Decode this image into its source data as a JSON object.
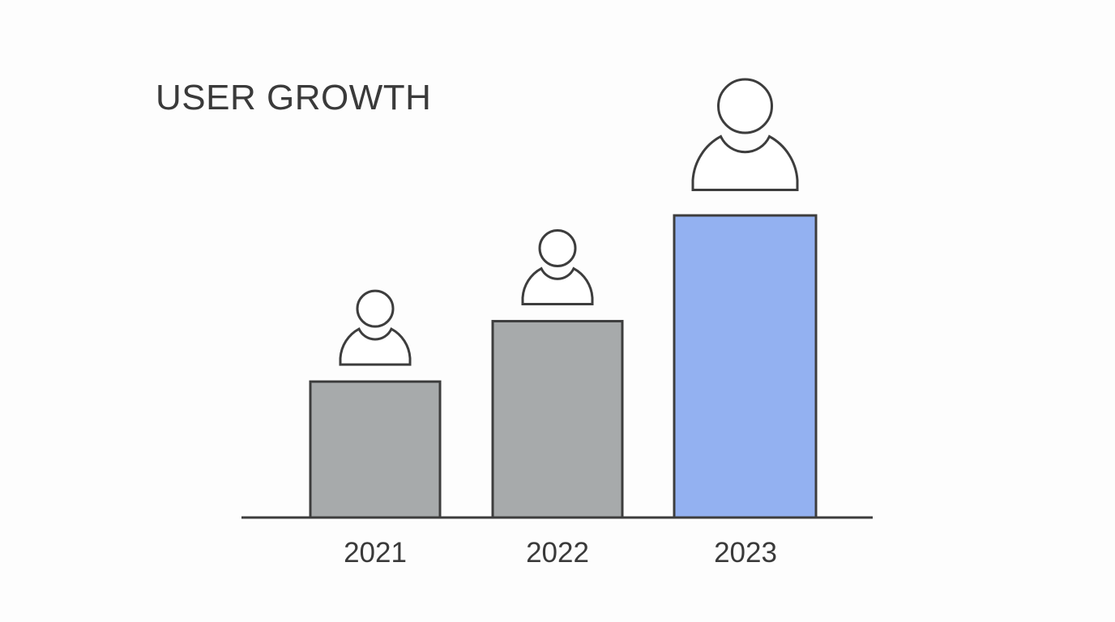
{
  "chart_data": {
    "type": "bar",
    "title": "USER GROWTH",
    "categories": [
      "2021",
      "2022",
      "2023"
    ],
    "values": [
      45,
      65,
      100
    ],
    "value_note_unit": "relative (no y-axis shown)",
    "xlabel": "",
    "ylabel": "",
    "grid": false,
    "legend": "none",
    "colors": [
      "#a7aaab",
      "#a7aaab",
      "#93b1f1"
    ],
    "outline_color": "#3d3d3d",
    "icon": "user-icon"
  }
}
